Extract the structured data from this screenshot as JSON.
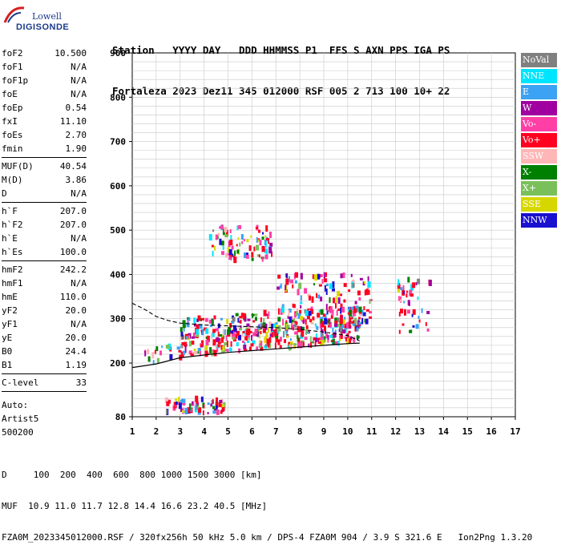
{
  "brand": {
    "line1": "Lowell",
    "line2": "DIGISONDE"
  },
  "header": {
    "line1": "Station   YYYY DAY   DDD HHMMSS P1  FFS S AXN PPS IGA PS",
    "line2": "Fortaleza 2023 Dez11 345 012000 RSF 005 2 713 100 10+ 22"
  },
  "params": [
    {
      "rows": [
        [
          "foF2",
          "10.500"
        ],
        [
          "foF1",
          "N/A"
        ],
        [
          "foF1p",
          "N/A"
        ],
        [
          "foE",
          "N/A"
        ],
        [
          "foEp",
          "0.54"
        ],
        [
          "fxI",
          "11.10"
        ],
        [
          "foEs",
          "2.70"
        ],
        [
          "fmin",
          "1.90"
        ]
      ]
    },
    {
      "rows": [
        [
          "MUF(D)",
          "40.54"
        ],
        [
          "M(D)",
          "3.86"
        ],
        [
          "D",
          "N/A"
        ]
      ]
    },
    {
      "rows": [
        [
          "h`F",
          "207.0"
        ],
        [
          "h`F2",
          "207.0"
        ],
        [
          "h`E",
          "N/A"
        ],
        [
          "h`Es",
          "100.0"
        ]
      ]
    },
    {
      "rows": [
        [
          "hmF2",
          "242.2"
        ],
        [
          "hmF1",
          "N/A"
        ],
        [
          "hmE",
          "110.0"
        ],
        [
          "yF2",
          "20.0"
        ],
        [
          "yF1",
          "N/A"
        ],
        [
          "yE",
          "20.0"
        ],
        [
          "B0",
          "24.4"
        ],
        [
          "B1",
          "1.19"
        ]
      ]
    },
    {
      "rows": [
        [
          "C-level",
          "33"
        ]
      ]
    }
  ],
  "auto": {
    "l1": "Auto:",
    "l2": "Artist5",
    "l3": "500200"
  },
  "legend": [
    {
      "label": "NoVal",
      "color": "#808080"
    },
    {
      "label": "NNE",
      "color": "#00e5ff"
    },
    {
      "label": "E",
      "color": "#3ba2f4"
    },
    {
      "label": "W",
      "color": "#a100a1"
    },
    {
      "label": "Vo-",
      "color": "#ff3fa6"
    },
    {
      "label": "Vo+",
      "color": "#ff0020"
    },
    {
      "label": "SSW",
      "color": "#ffb6b6"
    },
    {
      "label": "X-",
      "color": "#008000"
    },
    {
      "label": "X+",
      "color": "#7ac05a"
    },
    {
      "label": "SSE",
      "color": "#d7d700"
    },
    {
      "label": "NNW",
      "color": "#1a10d0"
    }
  ],
  "chart_data": {
    "type": "scatter",
    "x_ticks": [
      "1",
      "2",
      "3",
      "4",
      "5",
      "6",
      "7",
      "8",
      "9",
      "10",
      "11",
      "12",
      "13",
      "14",
      "15",
      "16",
      "17"
    ],
    "y_ticks": [
      "80",
      "200",
      "300",
      "400",
      "500",
      "600",
      "700",
      "800",
      "900"
    ],
    "xlim": [
      1,
      17
    ],
    "ylim": [
      80,
      900
    ],
    "grid": true,
    "trace": [
      [
        1.0,
        190
      ],
      [
        2.0,
        198
      ],
      [
        3.0,
        212
      ],
      [
        4.0,
        218
      ],
      [
        5.0,
        224
      ],
      [
        6.0,
        228
      ],
      [
        7.0,
        232
      ],
      [
        8.0,
        236
      ],
      [
        9.0,
        240
      ],
      [
        10.0,
        244
      ],
      [
        10.5,
        245
      ]
    ],
    "trace_dashed": [
      [
        1.0,
        335
      ],
      [
        1.5,
        322
      ],
      [
        2.0,
        305
      ],
      [
        2.5,
        296
      ],
      [
        3.0,
        290
      ],
      [
        4.0,
        286
      ],
      [
        5.0,
        284
      ],
      [
        6.0,
        282
      ],
      [
        7.0,
        280
      ],
      [
        8.0,
        276
      ],
      [
        9.0,
        270
      ],
      [
        10.0,
        262
      ],
      [
        10.5,
        250
      ]
    ],
    "clusters": [
      {
        "x0": 3.0,
        "x1": 10.5,
        "y0": 215,
        "y1": 260,
        "n": 260,
        "slope": 55
      },
      {
        "x0": 3.0,
        "x1": 10.5,
        "y0": 255,
        "y1": 300,
        "n": 200,
        "slope": 55
      },
      {
        "x0": 7.0,
        "x1": 11.0,
        "y0": 285,
        "y1": 400,
        "n": 120,
        "slope": 0
      },
      {
        "x0": 4.2,
        "x1": 6.8,
        "y0": 430,
        "y1": 510,
        "n": 90,
        "slope": 0
      },
      {
        "x0": 2.3,
        "x1": 4.8,
        "y0": 88,
        "y1": 120,
        "n": 70,
        "slope": 0
      },
      {
        "x0": 12.0,
        "x1": 13.4,
        "y0": 270,
        "y1": 390,
        "n": 45,
        "slope": 0
      },
      {
        "x0": 1.5,
        "x1": 3.0,
        "y0": 200,
        "y1": 240,
        "n": 18,
        "slope": 0
      }
    ]
  },
  "footer": {
    "line1": "D     100  200  400  600  800 1000 1500 3000 [km]",
    "line2": "MUF  10.9 11.0 11.7 12.8 14.4 16.6 23.2 40.5 [MHz]",
    "line3": "FZA0M_2023345012000.RSF / 320fx256h 50 kHz 5.0 km / DPS-4 FZA0M 904 / 3.9 S 321.6 E   Ion2Png 1.3.20"
  }
}
